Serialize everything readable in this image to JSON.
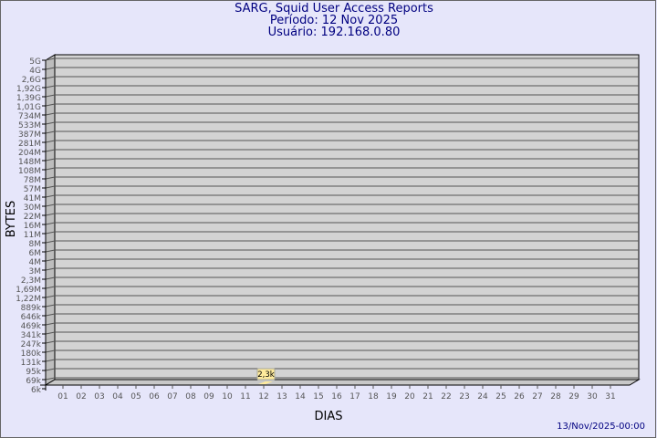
{
  "chart_data": {
    "type": "bar",
    "title": "SARG, Squid User Access Reports",
    "subtitle_period": "Período: 12 Nov 2025",
    "subtitle_user": "Usuário: 192.168.0.80",
    "xlabel": "DIAS",
    "ylabel": "BYTES",
    "y_scale": "log",
    "y_ticks": [
      "5G",
      "4G",
      "2,6G",
      "1,92G",
      "1,39G",
      "1,01G",
      "734M",
      "533M",
      "387M",
      "281M",
      "204M",
      "148M",
      "108M",
      "78M",
      "57M",
      "41M",
      "30M",
      "22M",
      "16M",
      "11M",
      "8M",
      "6M",
      "4M",
      "3M",
      "2,3M",
      "1,69M",
      "1,22M",
      "889k",
      "646k",
      "469k",
      "341k",
      "247k",
      "180k",
      "131k",
      "95k",
      "69k",
      "6k"
    ],
    "categories": [
      "01",
      "02",
      "03",
      "04",
      "05",
      "06",
      "07",
      "08",
      "09",
      "10",
      "11",
      "12",
      "13",
      "14",
      "15",
      "16",
      "17",
      "18",
      "19",
      "20",
      "21",
      "22",
      "23",
      "24",
      "25",
      "26",
      "27",
      "28",
      "29",
      "30",
      "31"
    ],
    "bars": [
      {
        "category": "12",
        "value": 2300,
        "label": "2,3k"
      }
    ],
    "bar_color": "#ffeb9c",
    "grid": true,
    "footer": "13/Nov/2025-00:00"
  },
  "colors": {
    "background": "#e6e6fa",
    "plot": "#d3d3d3",
    "title": "#000080"
  }
}
